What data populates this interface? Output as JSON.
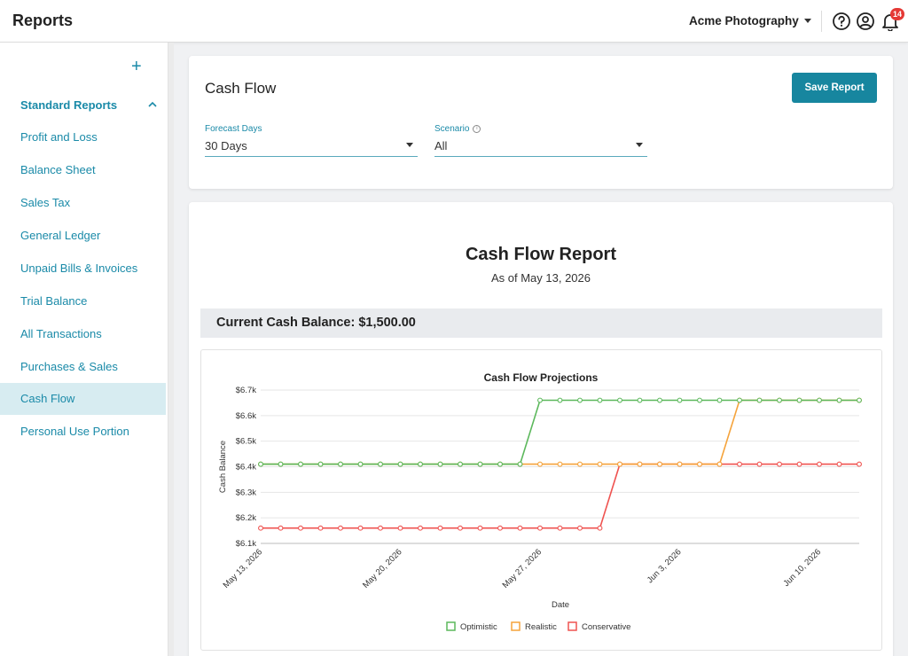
{
  "app": {
    "title": "Reports"
  },
  "header": {
    "company": "Acme Photography",
    "notification_count": "14"
  },
  "sidebar": {
    "section": "Standard Reports",
    "items": [
      {
        "label": "Profit and Loss"
      },
      {
        "label": "Balance Sheet"
      },
      {
        "label": "Sales Tax"
      },
      {
        "label": "General Ledger"
      },
      {
        "label": "Unpaid Bills & Invoices"
      },
      {
        "label": "Trial Balance"
      },
      {
        "label": "All Transactions"
      },
      {
        "label": "Purchases & Sales"
      },
      {
        "label": "Cash Flow",
        "active": true
      },
      {
        "label": "Personal Use Portion"
      }
    ]
  },
  "settings": {
    "title": "Cash Flow",
    "save_label": "Save Report",
    "forecast_label": "Forecast Days",
    "forecast_value": "30 Days",
    "scenario_label": "Scenario",
    "scenario_value": "All"
  },
  "report": {
    "title": "Cash Flow Report",
    "subtitle": "As of May 13, 2026",
    "balance": "Current Cash Balance: $1,500.00"
  },
  "colors": {
    "accent": "#17869f",
    "optimistic": "#5cb85c",
    "realistic": "#f5a33b",
    "conservative": "#ef5350"
  },
  "chart_data": {
    "type": "line",
    "title": "Cash Flow Projections",
    "xlabel": "Date",
    "ylabel": "Cash Balance",
    "x_start": "2026-05-13",
    "x_end": "2026-06-12",
    "x_ticks": [
      "May 13, 2026",
      "May 20, 2026",
      "May 27, 2026",
      "Jun 3, 2026",
      "Jun 10, 2026"
    ],
    "y_ticks": [
      "$6.7k",
      "$6.6k",
      "$6.5k",
      "$6.4k",
      "$6.3k",
      "$6.2k",
      "$6.1k"
    ],
    "ylim": [
      6100,
      6700
    ],
    "grid": true,
    "legend": "bottom",
    "series": [
      {
        "name": "Optimistic",
        "color": "#5cb85c",
        "values": [
          6410,
          6410,
          6410,
          6410,
          6410,
          6410,
          6410,
          6410,
          6410,
          6410,
          6410,
          6410,
          6410,
          6410,
          6660,
          6660,
          6660,
          6660,
          6660,
          6660,
          6660,
          6660,
          6660,
          6660,
          6660,
          6660,
          6660,
          6660,
          6660,
          6660,
          6660
        ]
      },
      {
        "name": "Realistic",
        "color": "#f5a33b",
        "values": [
          6410,
          6410,
          6410,
          6410,
          6410,
          6410,
          6410,
          6410,
          6410,
          6410,
          6410,
          6410,
          6410,
          6410,
          6410,
          6410,
          6410,
          6410,
          6410,
          6410,
          6410,
          6410,
          6410,
          6410,
          6660,
          6660,
          6660,
          6660,
          6660,
          6660,
          6660
        ]
      },
      {
        "name": "Conservative",
        "color": "#ef5350",
        "values": [
          6160,
          6160,
          6160,
          6160,
          6160,
          6160,
          6160,
          6160,
          6160,
          6160,
          6160,
          6160,
          6160,
          6160,
          6160,
          6160,
          6160,
          6160,
          6410,
          6410,
          6410,
          6410,
          6410,
          6410,
          6410,
          6410,
          6410,
          6410,
          6410,
          6410,
          6410
        ]
      }
    ]
  }
}
